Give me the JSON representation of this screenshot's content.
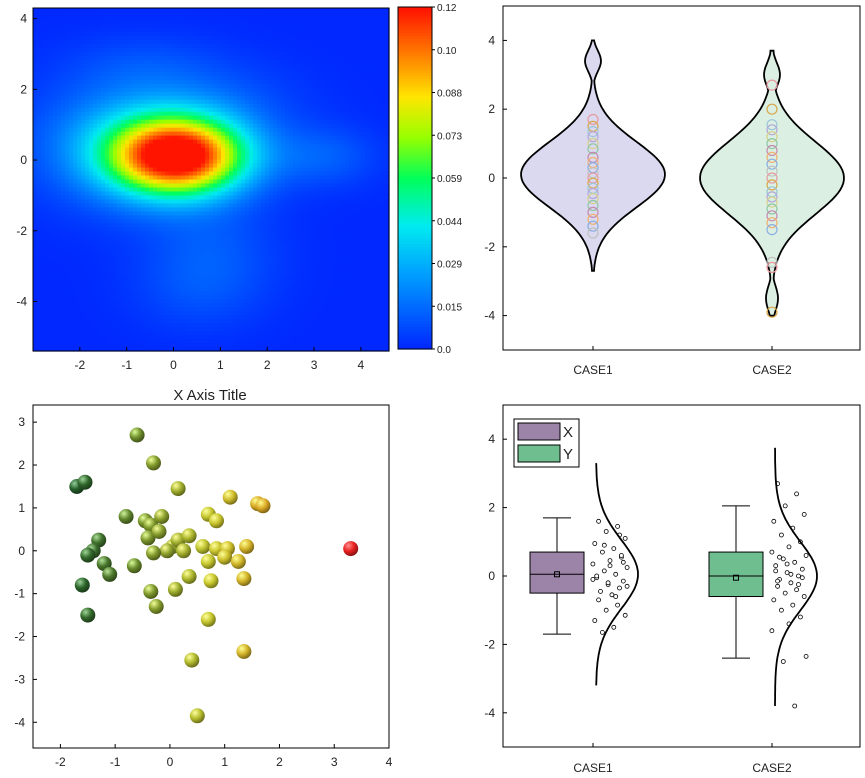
{
  "chart_data": [
    {
      "type": "heatmap",
      "xlabel": "X Axis Title",
      "ylabel": "",
      "xlim": [
        -3,
        4.6
      ],
      "ylim": [
        -5.4,
        4.3
      ],
      "x_ticks": [
        "-2",
        "-1",
        "0",
        "1",
        "2",
        "3",
        "4"
      ],
      "y_ticks": [
        "4",
        "2",
        "0",
        "-2",
        "-4"
      ],
      "colorbar": {
        "min": 0,
        "max": 0.12,
        "ticks": [
          "0.12",
          "0.10",
          "0.088",
          "0.073",
          "0.059",
          "0.044",
          "0.029",
          "0.015",
          "0.0"
        ]
      },
      "colors": {
        "low": "#0028ff",
        "mid": "#00ff80",
        "high": "#ff1a00"
      },
      "density_components": [
        {
          "cx": 0.1,
          "cy": 0.1,
          "sx": 1.0,
          "sy": 0.75,
          "w": 0.12
        },
        {
          "cx": -0.8,
          "cy": 0.5,
          "sx": 1.4,
          "sy": 1.2,
          "w": 0.03
        },
        {
          "cx": 3.2,
          "cy": 0.1,
          "sx": 0.8,
          "sy": 0.6,
          "w": 0.012
        },
        {
          "cx": 0.8,
          "cy": -2.6,
          "sx": 1.0,
          "sy": 1.0,
          "w": 0.01
        },
        {
          "cx": 0.5,
          "cy": -3.8,
          "sx": 1.0,
          "sy": 0.8,
          "w": 0.006
        },
        {
          "cx": -0.6,
          "cy": 2.7,
          "sx": 1.2,
          "sy": 0.6,
          "w": 0.006
        },
        {
          "cx": 1.3,
          "cy": 1.6,
          "sx": 1.2,
          "sy": 0.8,
          "w": 0.006
        }
      ]
    },
    {
      "type": "violin",
      "categories": [
        "CASE1",
        "CASE2"
      ],
      "ylim": [
        -5,
        5
      ],
      "y_ticks": [
        "4",
        "2",
        "0",
        "-2",
        "-4"
      ],
      "fills": [
        "#dad9ef",
        "#dcefe3"
      ],
      "series": [
        {
          "name": "CASE1",
          "y_range": [
            -2.7,
            4.0
          ],
          "points": [
            1.7,
            1.5,
            1.35,
            1.2,
            1.0,
            0.85,
            0.6,
            0.45,
            0.3,
            0.15,
            0.0,
            -0.15,
            -0.3,
            -0.45,
            -0.6,
            -0.8,
            -1.0,
            -1.2,
            -1.4,
            -1.6
          ]
        },
        {
          "name": "CASE2",
          "y_range": [
            -4.0,
            3.7
          ],
          "points": [
            2.7,
            2.0,
            1.55,
            1.4,
            1.2,
            1.0,
            0.8,
            0.6,
            0.4,
            0.2,
            0.0,
            -0.2,
            -0.4,
            -0.55,
            -0.7,
            -0.9,
            -1.1,
            -1.3,
            -1.5,
            -2.45,
            -2.6,
            -3.9
          ]
        }
      ]
    },
    {
      "type": "scatter",
      "xlim": [
        -2.5,
        4.0
      ],
      "ylim": [
        -4.6,
        3.4
      ],
      "x_ticks": [
        "-2",
        "-1",
        "0",
        "1",
        "2",
        "3",
        "4"
      ],
      "y_ticks": [
        "3",
        "2",
        "1",
        "0",
        "-1",
        "-2",
        "-3",
        "-4"
      ],
      "colors": {
        "low": "#1e5a2a",
        "mid": "#c8c82e",
        "high": "#e82020"
      },
      "points": [
        [
          -0.6,
          2.7
        ],
        [
          -0.3,
          2.05
        ],
        [
          0.15,
          1.45
        ],
        [
          -1.7,
          1.5
        ],
        [
          -1.55,
          1.6
        ],
        [
          1.1,
          1.25
        ],
        [
          1.6,
          1.1
        ],
        [
          1.7,
          1.05
        ],
        [
          -0.8,
          0.8
        ],
        [
          -0.45,
          0.7
        ],
        [
          -0.35,
          0.6
        ],
        [
          -0.15,
          0.8
        ],
        [
          0.7,
          0.85
        ],
        [
          0.85,
          0.7
        ],
        [
          -1.3,
          0.25
        ],
        [
          -1.4,
          0.0
        ],
        [
          -1.2,
          -0.3
        ],
        [
          -1.5,
          -0.1
        ],
        [
          -0.4,
          0.3
        ],
        [
          -0.2,
          0.45
        ],
        [
          0.05,
          0.1
        ],
        [
          0.15,
          0.25
        ],
        [
          0.35,
          0.35
        ],
        [
          -0.05,
          0.0
        ],
        [
          0.25,
          0.0
        ],
        [
          0.6,
          0.1
        ],
        [
          0.85,
          0.05
        ],
        [
          1.05,
          0.05
        ],
        [
          1.4,
          0.1
        ],
        [
          -1.1,
          -0.55
        ],
        [
          -0.65,
          -0.35
        ],
        [
          -0.3,
          -0.05
        ],
        [
          0.7,
          -0.25
        ],
        [
          1.0,
          -0.15
        ],
        [
          1.25,
          -0.25
        ],
        [
          -1.6,
          -0.8
        ],
        [
          -0.35,
          -0.95
        ],
        [
          0.1,
          -0.9
        ],
        [
          0.35,
          -0.6
        ],
        [
          0.75,
          -0.7
        ],
        [
          1.35,
          -0.65
        ],
        [
          -0.25,
          -1.3
        ],
        [
          -1.5,
          -1.5
        ],
        [
          0.7,
          -1.6
        ],
        [
          0.4,
          -2.55
        ],
        [
          1.35,
          -2.35
        ],
        [
          0.5,
          -3.85
        ],
        [
          3.3,
          0.05
        ]
      ]
    },
    {
      "type": "box",
      "categories": [
        "CASE1",
        "CASE2"
      ],
      "ylim": [
        -5,
        5
      ],
      "y_ticks": [
        "4",
        "2",
        "0",
        "-2",
        "-4"
      ],
      "legend": [
        {
          "name": "X",
          "color": "#9c84a9"
        },
        {
          "name": "Y",
          "color": "#6fbe90"
        }
      ],
      "series": [
        {
          "name": "X",
          "q1": -0.5,
          "median": 0.05,
          "q3": 0.7,
          "whisker_low": -1.7,
          "whisker_high": 1.7,
          "mean": 0.05,
          "curve_range": [
            -3.2,
            3.3
          ],
          "points": [
            1.6,
            1.45,
            1.3,
            1.1,
            0.95,
            0.8,
            0.7,
            0.55,
            0.45,
            0.35,
            0.25,
            0.15,
            0.05,
            -0.05,
            -0.15,
            -0.25,
            -0.35,
            -0.45,
            -0.55,
            -0.7,
            -0.85,
            -1.0,
            -1.15,
            -1.3,
            -1.5,
            -1.65,
            0.6,
            0.3,
            -0.1,
            -0.3,
            0.9,
            -0.6,
            0.0,
            0.4,
            -0.2,
            1.2
          ]
        },
        {
          "name": "Y",
          "q1": -0.6,
          "median": 0.0,
          "q3": 0.7,
          "whisker_low": -2.4,
          "whisker_high": 2.05,
          "mean": -0.05,
          "curve_range": [
            -3.8,
            3.75
          ],
          "points": [
            2.7,
            2.4,
            2.05,
            1.8,
            1.6,
            1.4,
            1.2,
            1.0,
            0.85,
            0.7,
            0.6,
            0.5,
            0.4,
            0.3,
            0.2,
            0.1,
            0.0,
            -0.1,
            -0.2,
            -0.3,
            -0.4,
            -0.5,
            -0.6,
            -0.7,
            -0.85,
            -1.0,
            -1.2,
            -1.4,
            -1.6,
            -2.35,
            -2.5,
            -3.8,
            0.15,
            -0.05,
            0.35,
            -0.25,
            0.55,
            0.05,
            -0.15
          ]
        }
      ]
    }
  ]
}
